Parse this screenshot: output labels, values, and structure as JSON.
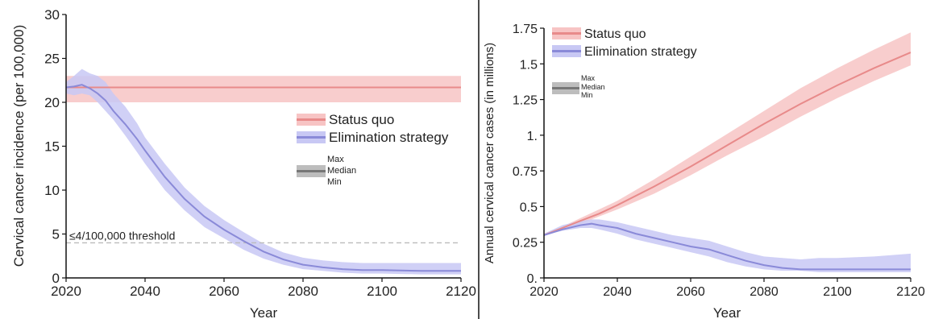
{
  "colors": {
    "status_quo_line": "#e88a8a",
    "status_quo_band": "#f7c4c4",
    "elimination_line": "#8a8ad8",
    "elimination_band": "#c8c8f4",
    "threshold_line": "#bbbbbb",
    "legend_median": "#777777",
    "legend_range": "#bdbdbd",
    "axis": "#111111"
  },
  "chart_data": [
    {
      "type": "area",
      "xlabel": "Year",
      "ylabel": "Cervical cancer incidence (per 100,000)",
      "xlim": [
        2020,
        2120
      ],
      "ylim": [
        0,
        30
      ],
      "xticks": [
        "2020",
        "2040",
        "2060",
        "2080",
        "2100",
        "2120"
      ],
      "yticks": [
        "0",
        "5",
        "10",
        "15",
        "20",
        "25",
        "30"
      ],
      "grid": false,
      "legend_position": "right",
      "annotation": "≤4/100,000 threshold",
      "threshold_value": 4,
      "range_legend": [
        "Max",
        "Median",
        "Min"
      ],
      "series": [
        {
          "name": "Status quo",
          "x": [
            2020,
            2120
          ],
          "median": [
            21.7,
            21.7
          ],
          "min": [
            20,
            20
          ],
          "max": [
            23,
            23
          ]
        },
        {
          "name": "Elimination strategy",
          "x": [
            2020,
            2022,
            2024,
            2026,
            2028,
            2030,
            2032,
            2035,
            2038,
            2040,
            2045,
            2050,
            2055,
            2060,
            2065,
            2070,
            2075,
            2080,
            2085,
            2090,
            2095,
            2100,
            2110,
            2120
          ],
          "median": [
            21.7,
            21.8,
            22.0,
            21.6,
            21.0,
            20.2,
            19.0,
            17.5,
            15.8,
            14.5,
            11.5,
            9.0,
            7.0,
            5.5,
            4.2,
            3.0,
            2.1,
            1.5,
            1.2,
            1.0,
            0.9,
            0.9,
            0.8,
            0.8
          ],
          "min": [
            21.0,
            20.8,
            21.0,
            20.8,
            20.0,
            19.0,
            18.0,
            16.2,
            14.3,
            13.0,
            10.0,
            7.7,
            5.8,
            4.5,
            3.2,
            2.2,
            1.5,
            1.0,
            0.8,
            0.6,
            0.5,
            0.5,
            0.4,
            0.4
          ],
          "max": [
            22.3,
            23.0,
            23.8,
            23.3,
            23.0,
            22.3,
            21.0,
            19.5,
            17.6,
            16.0,
            13.0,
            10.3,
            8.2,
            6.6,
            5.2,
            3.9,
            2.9,
            2.3,
            2.0,
            1.8,
            1.7,
            1.7,
            1.7,
            1.7
          ]
        }
      ]
    },
    {
      "type": "area",
      "xlabel": "Year",
      "ylabel": "Annual cervical cancer cases (in millions)",
      "xlim": [
        2020,
        2120
      ],
      "ylim": [
        0,
        1.75
      ],
      "xticks": [
        "2020",
        "2040",
        "2060",
        "2080",
        "2100",
        "2120"
      ],
      "yticks": [
        "0.",
        "0.25",
        "0.5",
        "0.75",
        "1.",
        "1.25",
        "1.5",
        "1.75"
      ],
      "grid": false,
      "legend_position": "top-left",
      "range_legend": [
        "Max",
        "Median",
        "Min"
      ],
      "series": [
        {
          "name": "Status quo",
          "x": [
            2020,
            2025,
            2030,
            2035,
            2040,
            2050,
            2060,
            2070,
            2080,
            2090,
            2100,
            2110,
            2120
          ],
          "median": [
            0.3,
            0.35,
            0.4,
            0.45,
            0.51,
            0.64,
            0.78,
            0.93,
            1.08,
            1.22,
            1.35,
            1.47,
            1.58
          ],
          "min": [
            0.3,
            0.34,
            0.38,
            0.43,
            0.48,
            0.59,
            0.72,
            0.86,
            0.99,
            1.13,
            1.26,
            1.38,
            1.49
          ],
          "max": [
            0.31,
            0.36,
            0.42,
            0.48,
            0.54,
            0.69,
            0.85,
            1.01,
            1.17,
            1.33,
            1.47,
            1.6,
            1.72
          ]
        },
        {
          "name": "Elimination strategy",
          "x": [
            2020,
            2025,
            2030,
            2033,
            2035,
            2040,
            2045,
            2050,
            2055,
            2060,
            2065,
            2070,
            2075,
            2080,
            2085,
            2090,
            2095,
            2100,
            2110,
            2120
          ],
          "median": [
            0.3,
            0.34,
            0.37,
            0.38,
            0.37,
            0.35,
            0.31,
            0.28,
            0.25,
            0.22,
            0.2,
            0.16,
            0.12,
            0.09,
            0.07,
            0.06,
            0.06,
            0.06,
            0.06,
            0.06
          ],
          "min": [
            0.3,
            0.33,
            0.35,
            0.35,
            0.34,
            0.31,
            0.27,
            0.24,
            0.21,
            0.18,
            0.15,
            0.11,
            0.08,
            0.06,
            0.05,
            0.05,
            0.04,
            0.04,
            0.04,
            0.04
          ],
          "max": [
            0.31,
            0.37,
            0.4,
            0.41,
            0.41,
            0.39,
            0.36,
            0.33,
            0.3,
            0.28,
            0.26,
            0.22,
            0.18,
            0.15,
            0.14,
            0.13,
            0.14,
            0.14,
            0.15,
            0.17
          ]
        }
      ]
    }
  ]
}
